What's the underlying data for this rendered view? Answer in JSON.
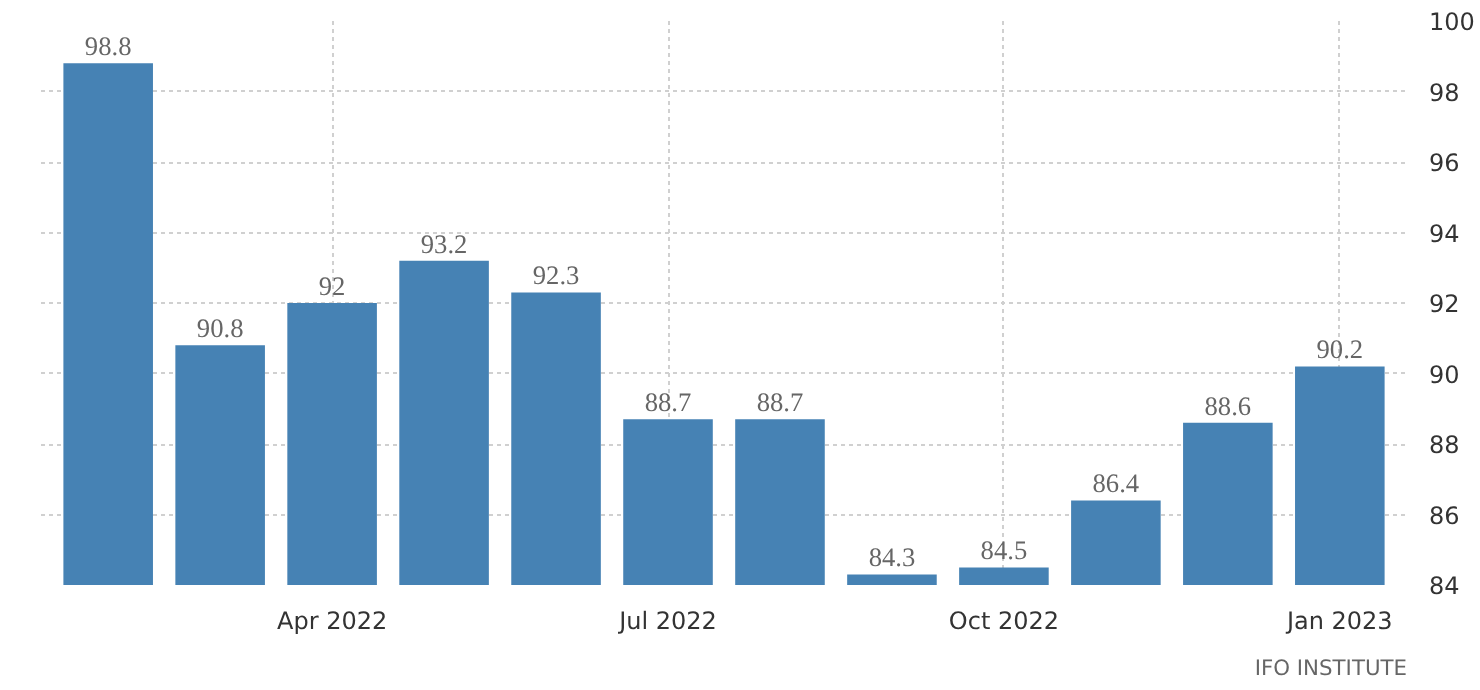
{
  "chart_data": {
    "type": "bar",
    "categories": [
      null,
      null,
      "Apr 2022",
      null,
      null,
      "Jul 2022",
      null,
      null,
      "Oct 2022",
      null,
      null,
      "Jan 2023"
    ],
    "values": [
      98.8,
      90.8,
      92,
      93.2,
      92.3,
      88.7,
      88.7,
      84.3,
      84.5,
      86.4,
      88.6,
      90.2
    ],
    "color": "#4682b4",
    "data_labels": true,
    "ylim": [
      84,
      100
    ],
    "yticks": [
      84,
      86,
      88,
      90,
      92,
      94,
      96,
      98,
      100
    ],
    "grid": true,
    "annotations": [
      "IFO INSTITUTE"
    ]
  }
}
